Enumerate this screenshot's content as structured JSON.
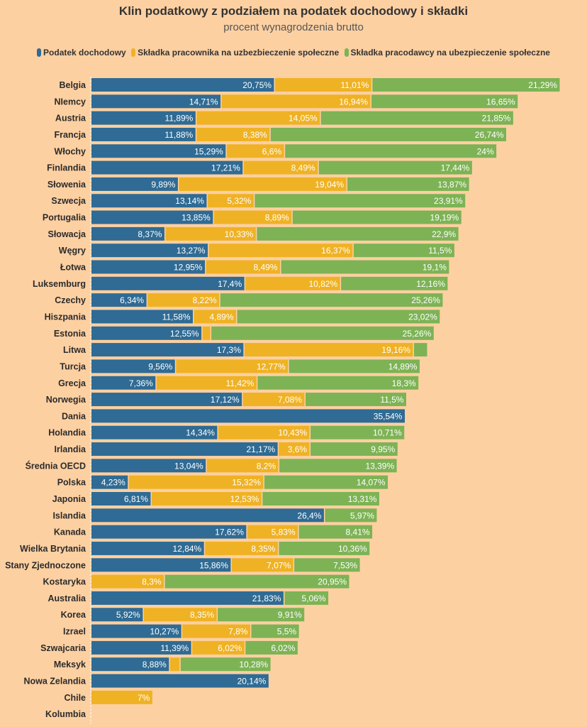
{
  "chart_data": {
    "type": "bar",
    "orientation": "horizontal",
    "stacked": true,
    "title": "Klin podatkowy z podziałem na podatek dochodowy i składki",
    "subtitle": "procent wynagrodzenia brutto",
    "legend_position": "top",
    "grid": false,
    "xlim": [
      0,
      53.05
    ],
    "categories": [
      "Belgia",
      "NIemcy",
      "Austria",
      "Francja",
      "Włochy",
      "Finlandia",
      "Słowenia",
      "Szwecja",
      "Portugalia",
      "Słowacja",
      "Węgry",
      "Łotwa",
      "Luksemburg",
      "Czechy",
      "Hiszpania",
      "Estonia",
      "Litwa",
      "Turcja",
      "Grecja",
      "Norwegia",
      "Dania",
      "Holandia",
      "Irlandia",
      "Średnia OECD",
      "Polska",
      "Japonia",
      "Islandia",
      "Kanada",
      "Wielka Brytania",
      "Stany Zjednoczone",
      "Kostaryka",
      "Australia",
      "Korea",
      "Izrael",
      "Szwajcaria",
      "Meksyk",
      "Nowa Zelandia",
      "Chile",
      "Kolumbia"
    ],
    "series": [
      {
        "name": "Podatek dochodowy",
        "color": "#2f6b94",
        "values": [
          20.75,
          14.71,
          11.89,
          11.88,
          15.29,
          17.21,
          9.89,
          13.14,
          13.85,
          8.37,
          13.27,
          12.95,
          17.4,
          6.34,
          11.58,
          12.55,
          17.3,
          9.56,
          7.36,
          17.12,
          35.54,
          14.34,
          21.17,
          13.04,
          4.23,
          6.81,
          26.4,
          17.62,
          12.84,
          15.86,
          0,
          21.83,
          5.92,
          10.27,
          11.39,
          8.88,
          20.14,
          0,
          0
        ],
        "labels": [
          "20,75%",
          "14,71%",
          "11,89%",
          "11,88%",
          "15,29%",
          "17,21%",
          "9,89%",
          "13,14%",
          "13,85%",
          "8,37%",
          "13,27%",
          "12,95%",
          "17,4%",
          "6,34%",
          "11,58%",
          "12,55%",
          "17,3%",
          "9,56%",
          "7,36%",
          "17,12%",
          "35,54%",
          "14,34%",
          "21,17%",
          "13,04%",
          "4,23%",
          "6,81%",
          "26,4%",
          "17,62%",
          "12,84%",
          "15,86%",
          "",
          "21,83%",
          "5,92%",
          "10,27%",
          "11,39%",
          "8,88%",
          "20,14%",
          "",
          ""
        ]
      },
      {
        "name": "Składka pracownika na uzbezbieczenie społeczne",
        "color": "#efb224",
        "values": [
          11.01,
          16.94,
          14.05,
          8.38,
          6.6,
          8.49,
          19.04,
          5.32,
          8.89,
          10.33,
          16.37,
          8.49,
          10.82,
          8.22,
          4.89,
          1.0,
          19.16,
          12.77,
          11.42,
          7.08,
          0,
          10.43,
          3.6,
          8.2,
          15.32,
          12.53,
          0,
          5.83,
          8.35,
          7.07,
          8.3,
          0,
          8.35,
          7.8,
          6.02,
          1.2,
          0,
          7,
          0
        ],
        "labels": [
          "11,01%",
          "16,94%",
          "14,05%",
          "8,38%",
          "6,6%",
          "8,49%",
          "19,04%",
          "5,32%",
          "8,89%",
          "10,33%",
          "16,37%",
          "8,49%",
          "10,82%",
          "8,22%",
          "4,89%",
          "",
          "19,16%",
          "12,77%",
          "11,42%",
          "7,08%",
          "",
          "10,43%",
          "3,6%",
          "8,2%",
          "15,32%",
          "12,53%",
          "",
          "5,83%",
          "8,35%",
          "7,07%",
          "8,3%",
          "",
          "8,35%",
          "7,8%",
          "6,02%",
          "",
          "",
          "7%",
          ""
        ]
      },
      {
        "name": "Składka pracodawcy na ubezpieczenie społeczne",
        "color": "#7db355",
        "values": [
          21.29,
          16.65,
          21.85,
          26.74,
          24,
          17.44,
          13.87,
          23.91,
          19.19,
          22.9,
          11.5,
          19.1,
          12.16,
          25.26,
          23.02,
          25.26,
          1.6,
          14.89,
          18.3,
          11.5,
          0,
          10.71,
          9.95,
          13.39,
          14.07,
          13.31,
          5.97,
          8.41,
          10.36,
          7.53,
          20.95,
          5.06,
          9.91,
          5.5,
          6.02,
          10.28,
          0,
          0,
          0
        ],
        "labels": [
          "21,29%",
          "16,65%",
          "21,85%",
          "26,74%",
          "24%",
          "17,44%",
          "13,87%",
          "23,91%",
          "19,19%",
          "22,9%",
          "11,5%",
          "19,1%",
          "12,16%",
          "25,26%",
          "23,02%",
          "25,26%",
          "",
          "14,89%",
          "18,3%",
          "11,5%",
          "",
          "10,71%",
          "9,95%",
          "13,39%",
          "14,07%",
          "13,31%",
          "5,97%",
          "8,41%",
          "10,36%",
          "7,53%",
          "20,95%",
          "5,06%",
          "9,91%",
          "5,5%",
          "6,02%",
          "10,28%",
          "",
          "",
          ""
        ]
      }
    ]
  }
}
